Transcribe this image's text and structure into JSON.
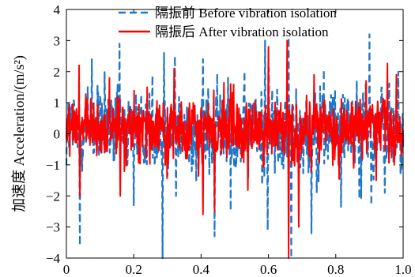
{
  "chart_data": {
    "type": "line",
    "xlim": [
      0,
      1.0
    ],
    "ylim": [
      -4,
      4
    ],
    "ylabel": "加速度 Acceleration/(m/s²)",
    "xlabel": "",
    "grid": false,
    "legend_position": "top-right",
    "x_ticks": [
      "0",
      "0.2",
      "0.4",
      "0.6",
      "0.8",
      "1.0"
    ],
    "y_ticks": [
      "4",
      "3",
      "2",
      "1",
      "0",
      "−1",
      "−2",
      "−3",
      "−4"
    ],
    "series": [
      {
        "name": "隔振前 Before vibration isolation",
        "color": "#1f77c8",
        "style": "dashed",
        "peaks": [
          {
            "x": 0.04,
            "y": -3.6
          },
          {
            "x": 0.075,
            "y": 2.4
          },
          {
            "x": 0.158,
            "y": 2.9
          },
          {
            "x": 0.2,
            "y": -2.3
          },
          {
            "x": 0.285,
            "y": -4.0
          },
          {
            "x": 0.29,
            "y": 2.6
          },
          {
            "x": 0.322,
            "y": 2.5
          },
          {
            "x": 0.325,
            "y": -2.0
          },
          {
            "x": 0.405,
            "y": 2.4
          },
          {
            "x": 0.44,
            "y": -3.3
          },
          {
            "x": 0.48,
            "y": 1.8
          },
          {
            "x": 0.59,
            "y": 3.0
          },
          {
            "x": 0.598,
            "y": -3.1
          },
          {
            "x": 0.66,
            "y": 3.1
          },
          {
            "x": 0.668,
            "y": -4.0
          },
          {
            "x": 0.728,
            "y": -3.2
          },
          {
            "x": 0.87,
            "y": -2.1
          },
          {
            "x": 0.9,
            "y": 3.2
          },
          {
            "x": 0.905,
            "y": -2.3
          },
          {
            "x": 0.946,
            "y": -1.9
          },
          {
            "x": 0.985,
            "y": 2.0
          }
        ]
      },
      {
        "name": "隔振后 After vibration isolation",
        "color": "#ff0000",
        "style": "solid",
        "peaks": [
          {
            "x": 0.038,
            "y": 2.2
          },
          {
            "x": 0.04,
            "y": -2.0
          },
          {
            "x": 0.128,
            "y": 1.8
          },
          {
            "x": 0.16,
            "y": -2.0
          },
          {
            "x": 0.24,
            "y": 1.5
          },
          {
            "x": 0.32,
            "y": 2.1
          },
          {
            "x": 0.405,
            "y": -2.6
          },
          {
            "x": 0.438,
            "y": 1.4
          },
          {
            "x": 0.44,
            "y": -2.5
          },
          {
            "x": 0.488,
            "y": 1.6
          },
          {
            "x": 0.6,
            "y": 2.8
          },
          {
            "x": 0.655,
            "y": 3.0
          },
          {
            "x": 0.66,
            "y": -4.0
          },
          {
            "x": 0.69,
            "y": -3.0
          },
          {
            "x": 0.735,
            "y": 1.9
          },
          {
            "x": 0.89,
            "y": 1.7
          },
          {
            "x": 0.92,
            "y": -1.5
          },
          {
            "x": 0.98,
            "y": 1.9
          }
        ]
      }
    ]
  }
}
